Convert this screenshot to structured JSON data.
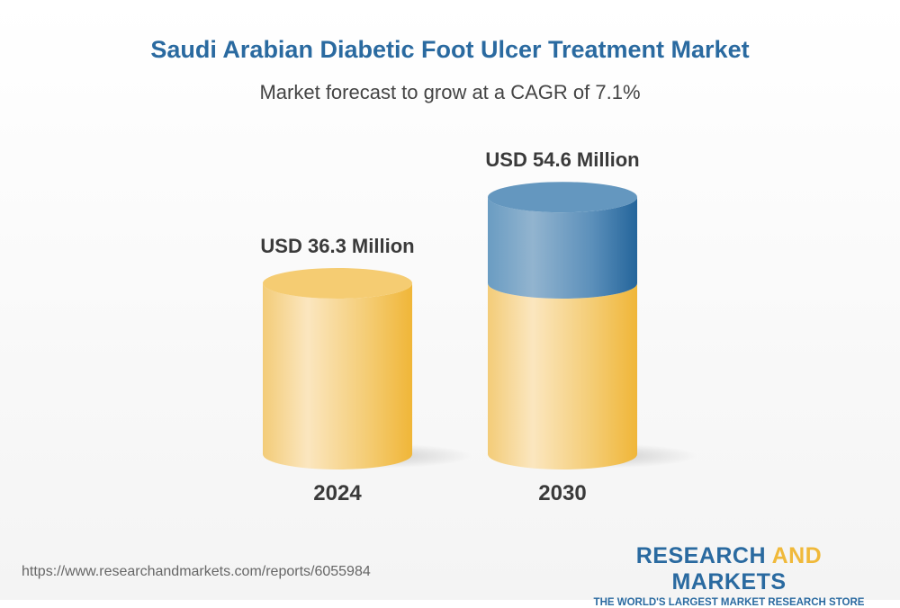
{
  "chart_data": {
    "type": "bar",
    "title": "Saudi Arabian Diabetic Foot Ulcer Treatment Market",
    "subtitle": "Market forecast to grow at a CAGR of 7.1%",
    "categories": [
      "2024",
      "2030"
    ],
    "values": [
      36.3,
      54.6
    ],
    "data_labels": [
      "USD 36.3 Million",
      "USD 54.6 Million"
    ],
    "ylim": [
      0,
      54.6
    ],
    "style": "3d-cylinder",
    "colors": {
      "base": "#f3c65e",
      "growth": "#2d6c9f"
    }
  },
  "footer": {
    "url": "https://www.researchandmarkets.com/reports/6055984",
    "logo_part1": "RESEARCH ",
    "logo_part2": "AND",
    "logo_part3": " MARKETS",
    "logo_tagline": "THE WORLD'S LARGEST MARKET RESEARCH STORE"
  }
}
